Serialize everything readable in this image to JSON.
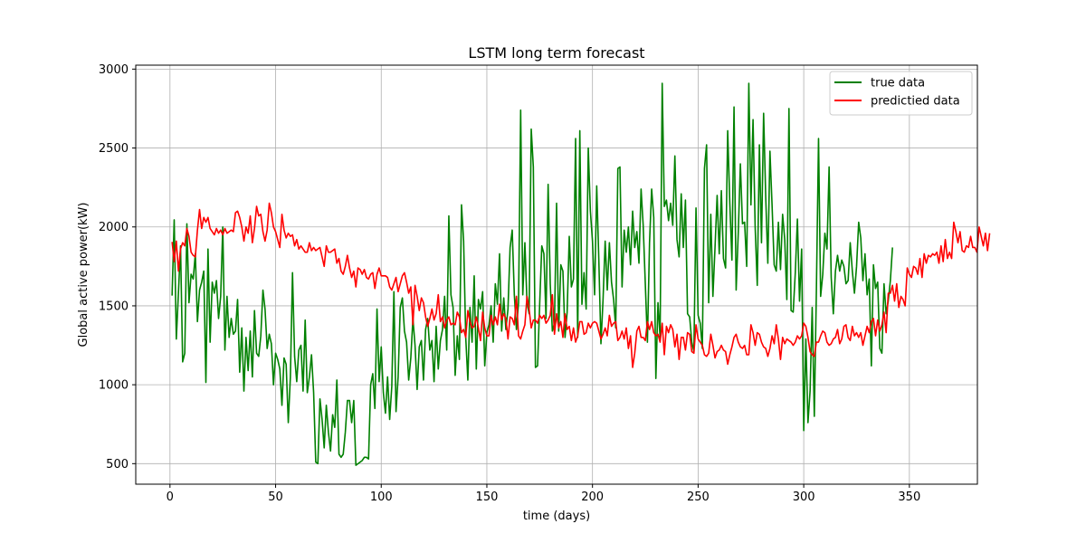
{
  "chart_data": {
    "type": "line",
    "title": "LSTM long term forecast",
    "xlabel": "time (days)",
    "ylabel": "Global active power(kW)",
    "xlim": [
      -16.2,
      382.2
    ],
    "ylim": [
      370,
      3025
    ],
    "xticks": [
      0,
      50,
      100,
      150,
      200,
      250,
      300,
      350
    ],
    "yticks": [
      500,
      1000,
      1500,
      2000,
      2500,
      3000
    ],
    "xtick_labels": [
      "0",
      "50",
      "100",
      "150",
      "200",
      "250",
      "300",
      "350"
    ],
    "ytick_labels": [
      "500",
      "1000",
      "1500",
      "2000",
      "2500",
      "3000"
    ],
    "grid": true,
    "legend_position": "top-right",
    "x_start": 1,
    "series": [
      {
        "name": "true data",
        "color": "#008000",
        "values": [
          1565,
          2045,
          1290,
          1580,
          1880,
          1145,
          1200,
          2020,
          1520,
          1700,
          1670,
          1830,
          1400,
          1600,
          1650,
          1720,
          1015,
          1860,
          1270,
          1650,
          1580,
          1660,
          1420,
          1560,
          2000,
          1220,
          1560,
          1300,
          1420,
          1320,
          1340,
          1540,
          1080,
          1360,
          960,
          1300,
          1090,
          1340,
          1050,
          1470,
          1200,
          1180,
          1310,
          1600,
          1480,
          1230,
          1320,
          1260,
          1000,
          1200,
          1160,
          1100,
          870,
          1170,
          1130,
          760,
          1050,
          1710,
          1180,
          1020,
          1220,
          1250,
          960,
          1410,
          950,
          1050,
          1190,
          950,
          510,
          500,
          910,
          780,
          600,
          870,
          700,
          580,
          810,
          730,
          1030,
          560,
          540,
          560,
          700,
          900,
          900,
          760,
          900,
          490,
          500,
          510,
          520,
          540,
          540,
          530,
          1000,
          1070,
          850,
          1480,
          1020,
          1240,
          950,
          820,
          1050,
          780,
          990,
          1590,
          830,
          1050,
          1490,
          1550,
          1340,
          1270,
          1030,
          1170,
          1420,
          1250,
          970,
          1240,
          1280,
          1030,
          1350,
          1420,
          1220,
          1280,
          1020,
          1370,
          1100,
          1280,
          1350,
          1560,
          1220,
          2070,
          1570,
          1490,
          1060,
          1310,
          1160,
          2140,
          1910,
          1300,
          1030,
          1490,
          1270,
          1690,
          1100,
          1540,
          1480,
          1590,
          1120,
          1330,
          1380,
          1500,
          1270,
          1640,
          1510,
          1830,
          1340,
          1550,
          1350,
          1480,
          1870,
          1980,
          1570,
          1350,
          1520,
          2740,
          1570,
          1900,
          1520,
          1450,
          2620,
          2380,
          1110,
          1120,
          1510,
          1880,
          1830,
          1420,
          2270,
          1640,
          1340,
          1390,
          2150,
          1340,
          1760,
          1720,
          1300,
          1460,
          1940,
          1620,
          1670,
          2560,
          1300,
          2610,
          1510,
          1710,
          1480,
          2500,
          2100,
          1910,
          1570,
          2260,
          1790,
          1260,
          1540,
          1910,
          1600,
          1900,
          1650,
          1540,
          1360,
          2370,
          2380,
          1620,
          1980,
          1840,
          2000,
          1760,
          2100,
          1870,
          1970,
          1770,
          2240,
          2010,
          1640,
          1270,
          1900,
          2240,
          2060,
          1040,
          1520,
          1300,
          2910,
          2130,
          2170,
          2040,
          2150,
          2010,
          2450,
          1920,
          1810,
          2210,
          1870,
          2170,
          1450,
          1430,
          1270,
          1210,
          2120,
          1440,
          1390,
          1230,
          2370,
          2520,
          1520,
          2080,
          1560,
          1870,
          2200,
          1830,
          2230,
          1800,
          1740,
          2610,
          2150,
          1790,
          2760,
          1600,
          1960,
          2400,
          2020,
          2030,
          1750,
          2910,
          2140,
          2680,
          2000,
          1630,
          2520,
          1900,
          2720,
          2190,
          1770,
          2480,
          2140,
          1760,
          1720,
          2030,
          1730,
          2080,
          1920,
          1540,
          2750,
          1470,
          1460,
          1710,
          2050,
          1530,
          1860,
          710,
          1290,
          760,
          960,
          1490,
          800,
          1610,
          2560,
          1560,
          1700,
          1960,
          1860,
          2380,
          1680,
          1450,
          1720,
          1820,
          1720,
          1790,
          1750,
          1640,
          1660,
          1900,
          1720,
          1580,
          1750,
          2030,
          1930,
          1660,
          1830,
          1570,
          1670,
          1120,
          1760,
          1610,
          1650,
          1230,
          1200,
          1640,
          1450,
          1530,
          1660,
          1870
        ]
      },
      {
        "name": "predictied data",
        "color": "#ff0000",
        "values": [
          1905,
          1780,
          1910,
          1720,
          1860,
          1900,
          1880,
          1990,
          1940,
          1840,
          1820,
          1810,
          1980,
          2110,
          1990,
          2060,
          2030,
          2060,
          1990,
          1970,
          1950,
          1990,
          1960,
          1980,
          1950,
          1990,
          1960,
          1970,
          1980,
          1970,
          2090,
          2100,
          2060,
          2000,
          1910,
          2000,
          1960,
          2070,
          1900,
          1990,
          2130,
          2070,
          2080,
          1970,
          1910,
          1980,
          2150,
          2090,
          2000,
          1970,
          1920,
          1870,
          2080,
          1980,
          1930,
          1960,
          1940,
          1950,
          1880,
          1920,
          1860,
          1880,
          1860,
          1840,
          1840,
          1900,
          1850,
          1870,
          1850,
          1860,
          1870,
          1810,
          1750,
          1880,
          1840,
          1840,
          1850,
          1860,
          1770,
          1800,
          1720,
          1700,
          1750,
          1820,
          1740,
          1680,
          1720,
          1620,
          1740,
          1730,
          1700,
          1730,
          1680,
          1670,
          1700,
          1710,
          1610,
          1700,
          1740,
          1690,
          1690,
          1690,
          1680,
          1620,
          1600,
          1640,
          1680,
          1590,
          1640,
          1690,
          1710,
          1650,
          1580,
          1620,
          1380,
          1630,
          1560,
          1470,
          1550,
          1520,
          1430,
          1370,
          1420,
          1480,
          1410,
          1450,
          1570,
          1400,
          1430,
          1360,
          1410,
          1430,
          1380,
          1390,
          1380,
          1460,
          1430,
          1330,
          1350,
          1300,
          1470,
          1400,
          1360,
          1370,
          1430,
          1360,
          1280,
          1460,
          1360,
          1310,
          1310,
          1440,
          1380,
          1430,
          1380,
          1510,
          1410,
          1450,
          1420,
          1290,
          1430,
          1420,
          1380,
          1560,
          1310,
          1290,
          1340,
          1380,
          1560,
          1480,
          1360,
          1410,
          1410,
          1390,
          1440,
          1420,
          1440,
          1390,
          1410,
          1440,
          1570,
          1320,
          1450,
          1360,
          1400,
          1300,
          1450,
          1350,
          1370,
          1280,
          1360,
          1270,
          1310,
          1400,
          1400,
          1320,
          1330,
          1390,
          1360,
          1390,
          1400,
          1390,
          1340,
          1290,
          1320,
          1360,
          1310,
          1440,
          1370,
          1390,
          1400,
          1280,
          1300,
          1340,
          1290,
          1360,
          1230,
          1310,
          1110,
          1200,
          1340,
          1370,
          1300,
          1300,
          1280,
          1400,
          1350,
          1400,
          1330,
          1310,
          1320,
          1270,
          1390,
          1190,
          1370,
          1330,
          1380,
          1350,
          1240,
          1320,
          1160,
          1300,
          1300,
          1220,
          1330,
          1320,
          1210,
          1200,
          1380,
          1290,
          1270,
          1250,
          1190,
          1180,
          1200,
          1320,
          1250,
          1170,
          1210,
          1220,
          1250,
          1220,
          1210,
          1130,
          1190,
          1240,
          1300,
          1320,
          1270,
          1240,
          1230,
          1250,
          1190,
          1190,
          1380,
          1330,
          1250,
          1330,
          1320,
          1270,
          1240,
          1230,
          1180,
          1230,
          1310,
          1260,
          1380,
          1290,
          1160,
          1300,
          1260,
          1290,
          1280,
          1270,
          1250,
          1270,
          1310,
          1290,
          1310,
          1390,
          1370,
          1300,
          1210,
          1190,
          1180,
          1270,
          1270,
          1310,
          1340,
          1330,
          1270,
          1250,
          1260,
          1290,
          1300,
          1350,
          1260,
          1290,
          1370,
          1380,
          1300,
          1280,
          1370,
          1310,
          1330,
          1300,
          1330,
          1250,
          1310,
          1370,
          1330,
          1400,
          1420,
          1310,
          1410,
          1340,
          1380,
          1460,
          1330,
          1580,
          1580,
          1630,
          1530,
          1640,
          1490,
          1560,
          1540,
          1500,
          1740,
          1700,
          1680,
          1750,
          1740,
          1700,
          1800,
          1680,
          1830,
          1770,
          1820,
          1810,
          1830,
          1820,
          1840,
          1770,
          1880,
          1780,
          1920,
          1800,
          1840,
          1800,
          2030,
          1970,
          1900,
          1970,
          1850,
          1840,
          1880,
          1870,
          1940,
          1870,
          1870,
          1840,
          2000,
          1940,
          1880,
          1960,
          1850,
          1960
        ]
      }
    ]
  }
}
